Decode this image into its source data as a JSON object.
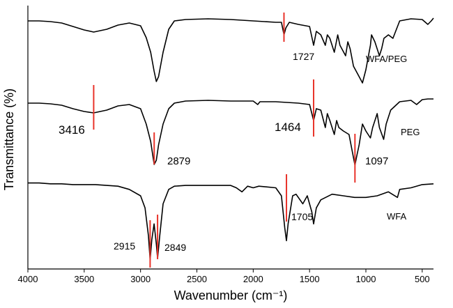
{
  "chart_data": {
    "type": "line",
    "xlabel": "Wavenumber (cm⁻¹)",
    "ylabel": "Transmittance (%)",
    "xlim": [
      4000,
      400
    ],
    "x_reversed": true,
    "x_ticks": [
      4000,
      3500,
      3000,
      2500,
      2000,
      1500,
      1000,
      500
    ],
    "x_tick_labels": [
      "4000",
      "3500",
      "3000",
      "2500",
      "2000",
      "1500",
      "1000",
      "500"
    ],
    "grid": false,
    "series": [
      {
        "name": "WFA/PEG",
        "points": [
          [
            4000,
            0.1
          ],
          [
            3900,
            0.1
          ],
          [
            3800,
            0.11
          ],
          [
            3700,
            0.13
          ],
          [
            3600,
            0.18
          ],
          [
            3500,
            0.23
          ],
          [
            3416,
            0.26
          ],
          [
            3300,
            0.22
          ],
          [
            3200,
            0.16
          ],
          [
            3100,
            0.13
          ],
          [
            3000,
            0.17
          ],
          [
            2950,
            0.34
          ],
          [
            2910,
            0.55
          ],
          [
            2880,
            0.82
          ],
          [
            2860,
            0.97
          ],
          [
            2840,
            0.9
          ],
          [
            2800,
            0.55
          ],
          [
            2750,
            0.22
          ],
          [
            2700,
            0.1
          ],
          [
            2600,
            0.08
          ],
          [
            2400,
            0.07
          ],
          [
            2200,
            0.08
          ],
          [
            2100,
            0.09
          ],
          [
            2000,
            0.1
          ],
          [
            1900,
            0.11
          ],
          [
            1800,
            0.12
          ],
          [
            1750,
            0.12
          ],
          [
            1727,
            0.3
          ],
          [
            1710,
            0.2
          ],
          [
            1680,
            0.12
          ],
          [
            1600,
            0.15
          ],
          [
            1500,
            0.18
          ],
          [
            1464,
            0.45
          ],
          [
            1440,
            0.25
          ],
          [
            1400,
            0.3
          ],
          [
            1360,
            0.45
          ],
          [
            1342,
            0.3
          ],
          [
            1320,
            0.35
          ],
          [
            1280,
            0.55
          ],
          [
            1250,
            0.3
          ],
          [
            1230,
            0.45
          ],
          [
            1180,
            0.6
          ],
          [
            1160,
            0.4
          ],
          [
            1140,
            0.5
          ],
          [
            1110,
            0.75
          ],
          [
            1060,
            0.9
          ],
          [
            1030,
            0.99
          ],
          [
            1000,
            0.8
          ],
          [
            960,
            0.45
          ],
          [
            950,
            0.3
          ],
          [
            920,
            0.4
          ],
          [
            880,
            0.6
          ],
          [
            860,
            0.5
          ],
          [
            840,
            0.35
          ],
          [
            800,
            0.3
          ],
          [
            760,
            0.35
          ],
          [
            700,
            0.1
          ],
          [
            600,
            0.07
          ],
          [
            500,
            0.08
          ],
          [
            450,
            0.15
          ],
          [
            420,
            0.1
          ],
          [
            400,
            0.06
          ]
        ]
      },
      {
        "name": "PEG",
        "points": [
          [
            4000,
            0.1
          ],
          [
            3900,
            0.1
          ],
          [
            3800,
            0.11
          ],
          [
            3700,
            0.13
          ],
          [
            3600,
            0.18
          ],
          [
            3500,
            0.22
          ],
          [
            3416,
            0.24
          ],
          [
            3300,
            0.2
          ],
          [
            3200,
            0.14
          ],
          [
            3100,
            0.12
          ],
          [
            3000,
            0.18
          ],
          [
            2950,
            0.4
          ],
          [
            2910,
            0.65
          ],
          [
            2879,
            0.98
          ],
          [
            2860,
            0.92
          ],
          [
            2840,
            0.7
          ],
          [
            2800,
            0.4
          ],
          [
            2750,
            0.18
          ],
          [
            2700,
            0.1
          ],
          [
            2600,
            0.07
          ],
          [
            2400,
            0.06
          ],
          [
            2200,
            0.07
          ],
          [
            2000,
            0.07
          ],
          [
            1960,
            0.12
          ],
          [
            1940,
            0.08
          ],
          [
            1800,
            0.08
          ],
          [
            1700,
            0.09
          ],
          [
            1600,
            0.1
          ],
          [
            1500,
            0.12
          ],
          [
            1464,
            0.35
          ],
          [
            1440,
            0.18
          ],
          [
            1400,
            0.2
          ],
          [
            1360,
            0.45
          ],
          [
            1342,
            0.25
          ],
          [
            1320,
            0.35
          ],
          [
            1280,
            0.55
          ],
          [
            1260,
            0.35
          ],
          [
            1240,
            0.45
          ],
          [
            1200,
            0.5
          ],
          [
            1150,
            0.55
          ],
          [
            1120,
            0.8
          ],
          [
            1097,
            0.99
          ],
          [
            1080,
            0.85
          ],
          [
            1060,
            0.7
          ],
          [
            1030,
            0.4
          ],
          [
            1000,
            0.5
          ],
          [
            960,
            0.6
          ],
          [
            940,
            0.45
          ],
          [
            900,
            0.25
          ],
          [
            880,
            0.45
          ],
          [
            842,
            0.62
          ],
          [
            820,
            0.4
          ],
          [
            780,
            0.2
          ],
          [
            700,
            0.08
          ],
          [
            600,
            0.06
          ],
          [
            550,
            0.12
          ],
          [
            500,
            0.05
          ],
          [
            450,
            0.04
          ],
          [
            400,
            0.04
          ]
        ]
      },
      {
        "name": "WFA",
        "points": [
          [
            4000,
            0.04
          ],
          [
            3900,
            0.04
          ],
          [
            3800,
            0.05
          ],
          [
            3700,
            0.05
          ],
          [
            3600,
            0.06
          ],
          [
            3500,
            0.06
          ],
          [
            3400,
            0.06
          ],
          [
            3300,
            0.07
          ],
          [
            3200,
            0.08
          ],
          [
            3100,
            0.12
          ],
          [
            3000,
            0.2
          ],
          [
            2960,
            0.35
          ],
          [
            2930,
            0.7
          ],
          [
            2915,
            1.0
          ],
          [
            2900,
            0.75
          ],
          [
            2880,
            0.55
          ],
          [
            2860,
            0.8
          ],
          [
            2849,
            0.98
          ],
          [
            2830,
            0.7
          ],
          [
            2800,
            0.3
          ],
          [
            2750,
            0.12
          ],
          [
            2700,
            0.08
          ],
          [
            2600,
            0.07
          ],
          [
            2500,
            0.07
          ],
          [
            2400,
            0.07
          ],
          [
            2300,
            0.07
          ],
          [
            2200,
            0.07
          ],
          [
            2150,
            0.1
          ],
          [
            2100,
            0.15
          ],
          [
            2050,
            0.08
          ],
          [
            2000,
            0.1
          ],
          [
            1950,
            0.08
          ],
          [
            1800,
            0.1
          ],
          [
            1750,
            0.2
          ],
          [
            1720,
            0.6
          ],
          [
            1705,
            0.76
          ],
          [
            1690,
            0.55
          ],
          [
            1650,
            0.2
          ],
          [
            1620,
            0.18
          ],
          [
            1560,
            0.3
          ],
          [
            1520,
            0.2
          ],
          [
            1480,
            0.4
          ],
          [
            1464,
            0.55
          ],
          [
            1440,
            0.35
          ],
          [
            1400,
            0.25
          ],
          [
            1300,
            0.18
          ],
          [
            1200,
            0.2
          ],
          [
            1100,
            0.22
          ],
          [
            1000,
            0.22
          ],
          [
            900,
            0.2
          ],
          [
            800,
            0.15
          ],
          [
            720,
            0.22
          ],
          [
            700,
            0.12
          ],
          [
            600,
            0.1
          ],
          [
            500,
            0.06
          ],
          [
            400,
            0.05
          ]
        ]
      }
    ],
    "marker_lines": [
      {
        "x": 1727,
        "series": "WFA/PEG"
      },
      {
        "x": 3416,
        "series": "PEG"
      },
      {
        "x": 2879,
        "series": "PEG"
      },
      {
        "x": 1464,
        "series": "PEG"
      },
      {
        "x": 1097,
        "series": "PEG"
      },
      {
        "x": 1705,
        "series": "WFA"
      },
      {
        "x": 2915,
        "series": "WFA"
      },
      {
        "x": 2849,
        "series": "WFA"
      }
    ],
    "annotations": [
      "1727",
      "3416",
      "2879",
      "1464",
      "1097",
      "1705",
      "2915",
      "2849"
    ],
    "series_labels": [
      "WFA/PEG",
      "PEG",
      "WFA"
    ]
  }
}
